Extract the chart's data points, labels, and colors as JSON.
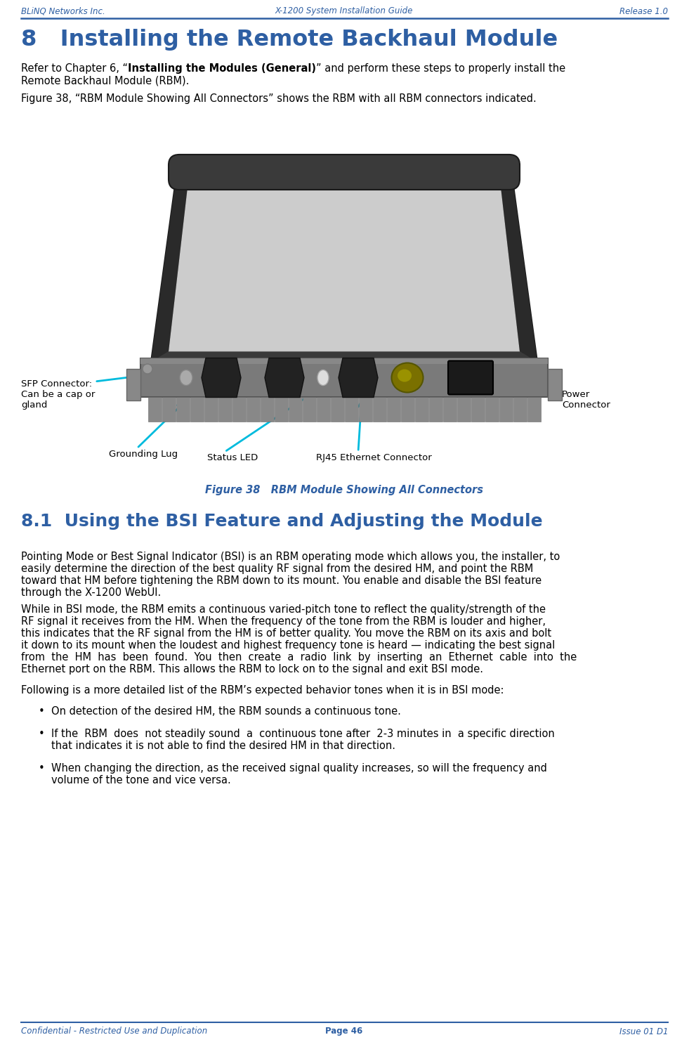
{
  "header_left": "BLiNQ Networks Inc.",
  "header_center": "X-1200 System Installation Guide",
  "header_right": "Release 1.0",
  "footer_left": "Confidential - Restricted Use and Duplication",
  "footer_center": "Page 46",
  "footer_right": "Issue 01 D1",
  "header_color": "#2E5FA3",
  "header_line_color": "#2E5FA3",
  "chapter_title": "8   Installing the Remote Backhaul Module",
  "chapter_title_color": "#2E5FA3",
  "section_title": "8.1  Using the BSI Feature and Adjusting the Module",
  "section_title_color": "#2E5FA3",
  "body_color": "#000000",
  "figure_caption": "Figure 38   RBM Module Showing All Connectors",
  "figure_caption_color": "#2E5FA3",
  "para1_pre": "Refer to Chapter 6, “",
  "para1_bold": "Installing the Modules (General)",
  "para1_post": "” and perform these steps to properly install the",
  "para1_line2": "Remote Backhaul Module (RBM).",
  "para2": "Figure 38, “RBM Module Showing All Connectors” shows the RBM with all RBM connectors indicated.",
  "body1_lines": [
    "Pointing Mode or Best Signal Indicator (BSI) is an RBM operating mode which allows you, the installer, to",
    "easily determine the direction of the best quality RF signal from the desired HM, and point the RBM",
    "toward that HM before tightening the RBM down to its mount. You enable and disable the BSI feature",
    "through the X-1200 WebUI."
  ],
  "body2_lines": [
    "While in BSI mode, the RBM emits a continuous varied-pitch tone to reflect the quality/strength of the",
    "RF signal it receives from the HM. When the frequency of the tone from the RBM is louder and higher,",
    "this indicates that the RF signal from the HM is of better quality. You move the RBM on its axis and bolt",
    "it down to its mount when the loudest and highest frequency tone is heard — indicating the best signal",
    "from  the  HM  has  been  found.  You  then  create  a  radio  link  by  inserting  an  Ethernet  cable  into  the",
    "Ethernet port on the RBM. This allows the RBM to lock on to the signal and exit BSI mode."
  ],
  "body3": "Following is a more detailed list of the RBM’s expected behavior tones when it is in BSI mode:",
  "bullet1": "On detection of the desired HM, the RBM sounds a continuous tone.",
  "bullet2_lines": [
    "If the  RBM  does  not steadily sound  a  continuous tone after  2-3 minutes in  a specific direction",
    "that indicates it is not able to find the desired HM in that direction."
  ],
  "bullet3_lines": [
    "When changing the direction, as the received signal quality increases, so will the frequency and",
    "volume of the tone and vice versa."
  ],
  "label_sfp": "SFP Connector:\nCan be a cap or\ngland",
  "label_grounding": "Grounding Lug",
  "label_status": "Status LED",
  "label_rj45": "RJ45 Ethernet Connector",
  "label_power": "Power\nConnector",
  "bg_color": "#FFFFFF",
  "arrow_color": "#00BBDD"
}
